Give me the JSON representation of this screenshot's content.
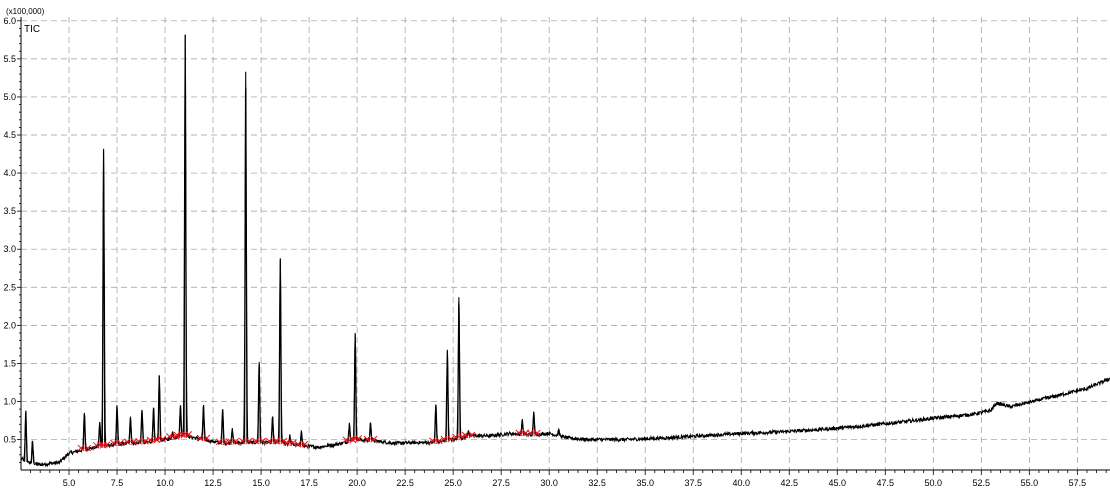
{
  "chart_data": {
    "type": "line",
    "title": "",
    "series_label": "TIC",
    "y_scale_label": "(x100,000)",
    "xlabel": "",
    "ylabel": "",
    "xlim": [
      2.5,
      59.2
    ],
    "ylim": [
      0.1,
      6.05
    ],
    "x_ticks": [
      5.0,
      7.5,
      10.0,
      12.5,
      15.0,
      17.5,
      20.0,
      22.5,
      25.0,
      27.5,
      30.0,
      32.5,
      35.0,
      37.5,
      40.0,
      42.5,
      45.0,
      47.5,
      50.0,
      52.5,
      55.0,
      57.5
    ],
    "x_tick_labels": [
      "5.0",
      "7.5",
      "10.0",
      "12.5",
      "15.0",
      "17.5",
      "20.0",
      "22.5",
      "25.0",
      "27.5",
      "30.0",
      "32.5",
      "35.0",
      "37.5",
      "40.0",
      "42.5",
      "45.0",
      "47.5",
      "50.0",
      "52.5",
      "55.0",
      "57.5"
    ],
    "y_ticks": [
      0.5,
      1.0,
      1.5,
      2.0,
      2.5,
      3.0,
      3.5,
      4.0,
      4.5,
      5.0,
      5.5,
      6.0
    ],
    "y_tick_labels": [
      "0.5",
      "1.0",
      "1.5",
      "2.0",
      "2.5",
      "3.0",
      "3.5",
      "4.0",
      "4.5",
      "5.0",
      "5.5",
      "6.0"
    ],
    "grid": true,
    "baseline": [
      [
        2.5,
        0.25
      ],
      [
        2.8,
        0.2
      ],
      [
        3.5,
        0.17
      ],
      [
        4.5,
        0.2
      ],
      [
        5.0,
        0.32
      ],
      [
        6.0,
        0.38
      ],
      [
        7.0,
        0.42
      ],
      [
        8.0,
        0.45
      ],
      [
        9.0,
        0.46
      ],
      [
        10.0,
        0.5
      ],
      [
        11.0,
        0.55
      ],
      [
        12.0,
        0.5
      ],
      [
        13.0,
        0.45
      ],
      [
        14.0,
        0.46
      ],
      [
        15.0,
        0.46
      ],
      [
        16.0,
        0.46
      ],
      [
        17.0,
        0.42
      ],
      [
        18.0,
        0.4
      ],
      [
        19.0,
        0.44
      ],
      [
        20.0,
        0.5
      ],
      [
        21.0,
        0.48
      ],
      [
        22.0,
        0.45
      ],
      [
        23.0,
        0.46
      ],
      [
        24.0,
        0.46
      ],
      [
        25.0,
        0.5
      ],
      [
        26.0,
        0.55
      ],
      [
        27.0,
        0.55
      ],
      [
        28.0,
        0.58
      ],
      [
        29.0,
        0.56
      ],
      [
        30.0,
        0.58
      ],
      [
        31.0,
        0.52
      ],
      [
        32.0,
        0.5
      ],
      [
        34.0,
        0.5
      ],
      [
        36.0,
        0.52
      ],
      [
        38.0,
        0.55
      ],
      [
        40.0,
        0.58
      ],
      [
        42.0,
        0.6
      ],
      [
        44.0,
        0.63
      ],
      [
        46.0,
        0.67
      ],
      [
        48.0,
        0.72
      ],
      [
        50.0,
        0.78
      ],
      [
        52.0,
        0.83
      ],
      [
        53.0,
        0.88
      ],
      [
        53.3,
        0.98
      ],
      [
        54.0,
        0.93
      ],
      [
        56.0,
        1.05
      ],
      [
        58.0,
        1.17
      ],
      [
        59.2,
        1.3
      ]
    ],
    "peaks": [
      {
        "x": 2.75,
        "y": 0.88
      },
      {
        "x": 3.1,
        "y": 0.48
      },
      {
        "x": 5.8,
        "y": 0.85
      },
      {
        "x": 6.6,
        "y": 0.72
      },
      {
        "x": 6.8,
        "y": 4.32
      },
      {
        "x": 7.5,
        "y": 0.94
      },
      {
        "x": 8.2,
        "y": 0.8
      },
      {
        "x": 8.8,
        "y": 0.89
      },
      {
        "x": 9.4,
        "y": 0.92
      },
      {
        "x": 9.7,
        "y": 1.34
      },
      {
        "x": 10.4,
        "y": 0.6
      },
      {
        "x": 10.8,
        "y": 0.95
      },
      {
        "x": 11.05,
        "y": 5.82
      },
      {
        "x": 12.0,
        "y": 0.95
      },
      {
        "x": 13.0,
        "y": 0.9
      },
      {
        "x": 13.5,
        "y": 0.65
      },
      {
        "x": 14.2,
        "y": 5.33
      },
      {
        "x": 14.9,
        "y": 1.52
      },
      {
        "x": 15.6,
        "y": 0.8
      },
      {
        "x": 16.0,
        "y": 2.88
      },
      {
        "x": 16.5,
        "y": 0.55
      },
      {
        "x": 17.1,
        "y": 0.62
      },
      {
        "x": 19.6,
        "y": 0.72
      },
      {
        "x": 19.9,
        "y": 1.9
      },
      {
        "x": 20.7,
        "y": 0.72
      },
      {
        "x": 24.1,
        "y": 0.96
      },
      {
        "x": 24.7,
        "y": 1.68
      },
      {
        "x": 25.3,
        "y": 2.37
      },
      {
        "x": 25.8,
        "y": 0.62
      },
      {
        "x": 28.6,
        "y": 0.75
      },
      {
        "x": 29.2,
        "y": 0.86
      },
      {
        "x": 30.5,
        "y": 0.62
      }
    ],
    "integration_color": "#e8141b",
    "line_color": "#000000",
    "grid_color": "#9a9a9a"
  }
}
